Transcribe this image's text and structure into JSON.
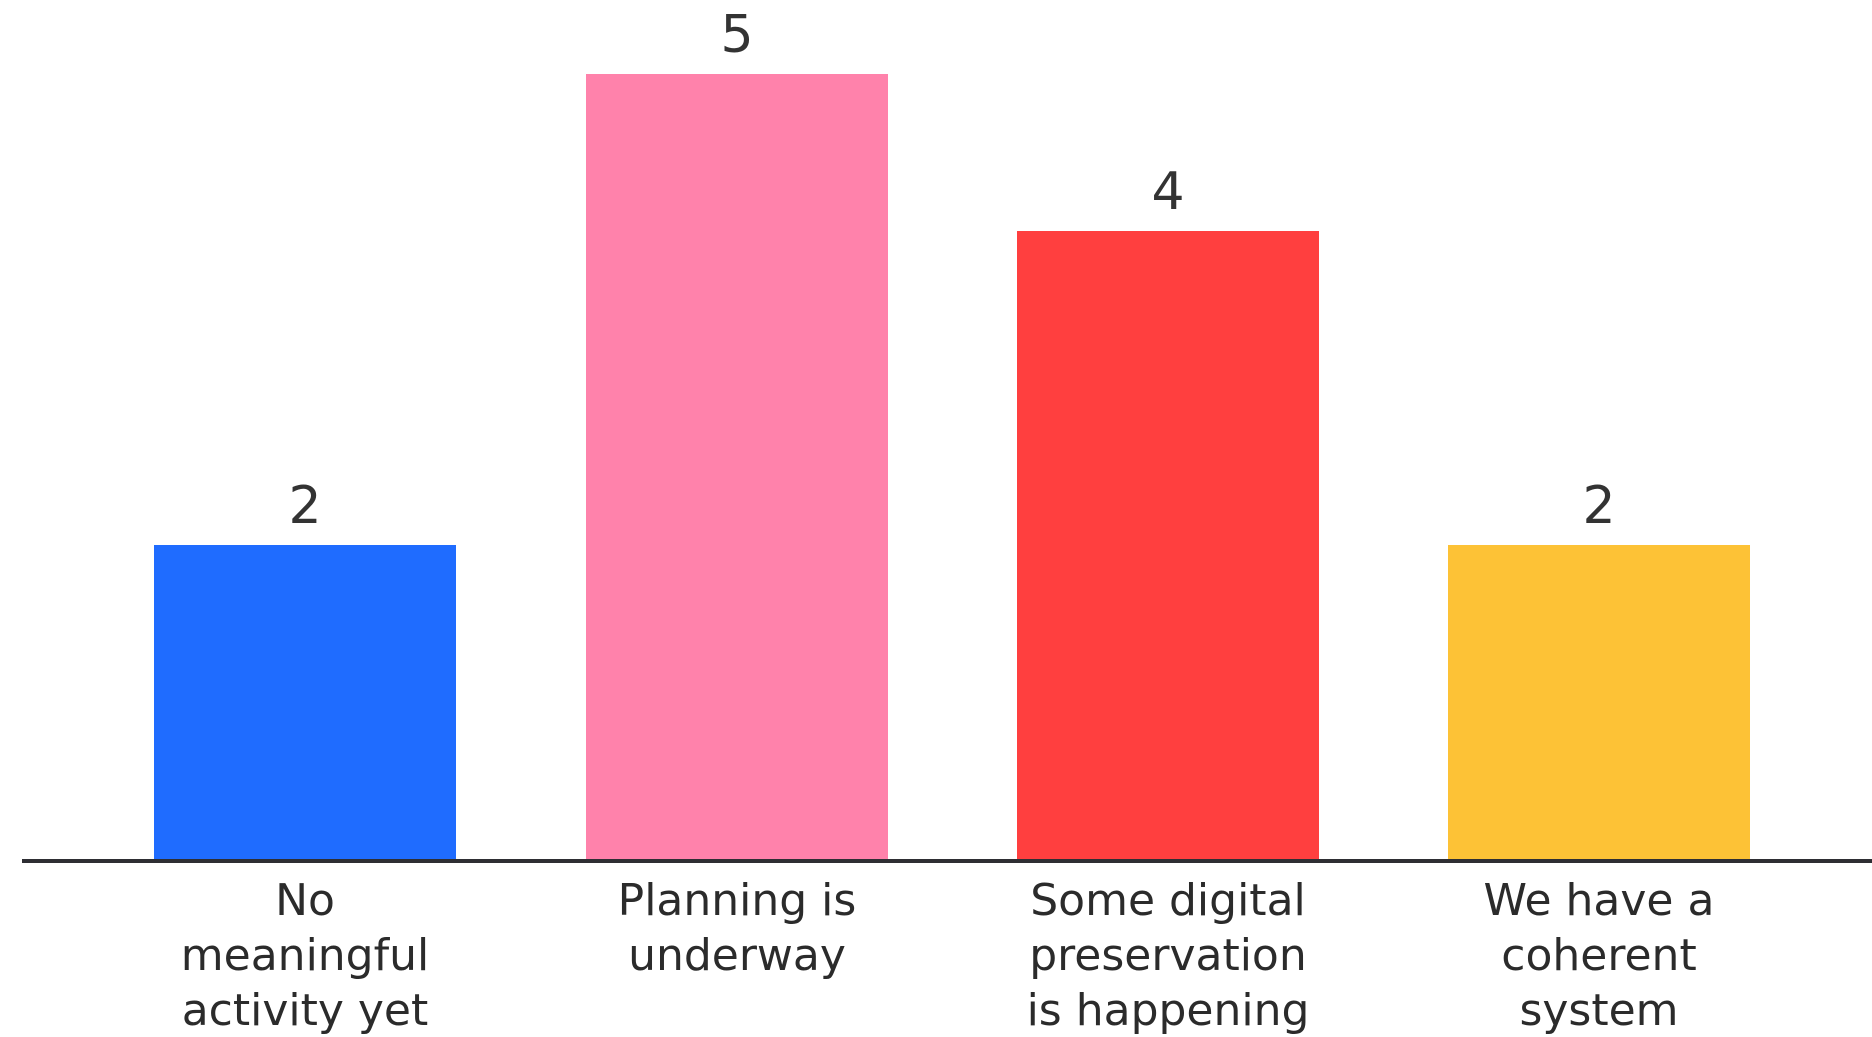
{
  "chart_data": {
    "type": "bar",
    "categories": [
      [
        "No",
        "meaningful",
        "activity yet"
      ],
      [
        "Planning is",
        "underway"
      ],
      [
        "Some digital",
        "preservation",
        "is happening"
      ],
      [
        "We have a",
        "coherent",
        "system"
      ]
    ],
    "values": [
      2,
      5,
      4,
      2
    ],
    "colors": [
      "#1f6cff",
      "#ff82ab",
      "#ff3f3f",
      "#fdc236"
    ],
    "data_labels": [
      "2",
      "5",
      "4",
      "2"
    ],
    "ylim": [
      0,
      5
    ],
    "grid": false,
    "title": "",
    "xlabel": "",
    "ylabel": ""
  }
}
